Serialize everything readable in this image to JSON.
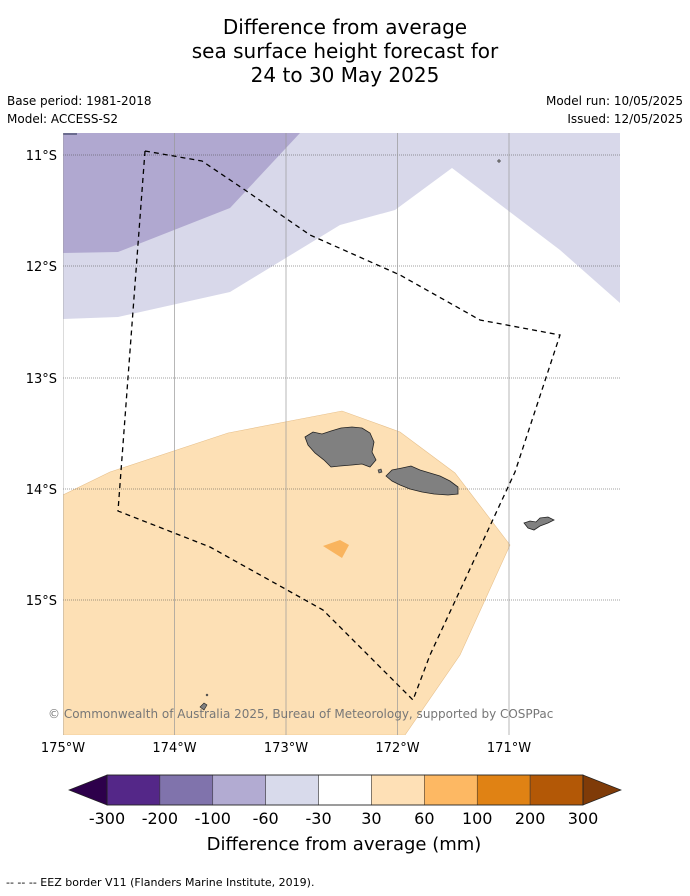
{
  "title": {
    "line1": "Difference from average",
    "line2": "sea surface height forecast for",
    "line3": "24 to 30 May 2025"
  },
  "meta": {
    "base_period": "Base period: 1981-2018",
    "model": "Model: ACCESS-S2",
    "model_run": "Model run: 10/05/2025",
    "issued": "Issued: 12/05/2025"
  },
  "map": {
    "lat_labels": [
      "11°S",
      "12°S",
      "13°S",
      "14°S",
      "15°S"
    ],
    "lon_labels": [
      "175°W",
      "174°W",
      "173°W",
      "172°W",
      "171°W"
    ],
    "attribution": "© Commonwealth of Australia 2025, Bureau of Meteorology, supported by COSPPac",
    "land_color": "#808080",
    "eez_style": "dashed black line",
    "anomaly_fill_colors": {
      "-100_to_-60": "#b0a8d0",
      "-60_to_-30": "#d8d8ea",
      "30_to_60": "#fde0b5",
      "60_to_100": "#f9b45e"
    }
  },
  "colorbar": {
    "label": "Difference from average (mm)",
    "ticks": [
      "-300",
      "-200",
      "-100",
      "-60",
      "-30",
      "30",
      "60",
      "100",
      "200",
      "300"
    ],
    "low_extend_color": "#2d004b",
    "high_extend_color": "#7f3b08",
    "colors": [
      "#542788",
      "#8073ac",
      "#b2abd2",
      "#d8daeb",
      "#ffffff",
      "#fee0b6",
      "#fdb863",
      "#e08214",
      "#b35806"
    ]
  },
  "footnote": "--  --  -- EEZ border V11 (Flanders Marine Institute, 2019)."
}
